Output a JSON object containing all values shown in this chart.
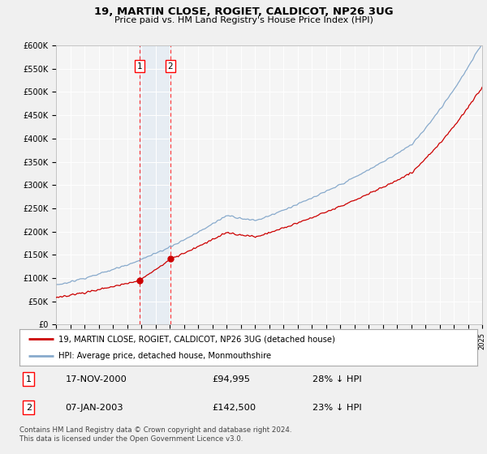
{
  "title": "19, MARTIN CLOSE, ROGIET, CALDICOT, NP26 3UG",
  "subtitle": "Price paid vs. HM Land Registry's House Price Index (HPI)",
  "ylabel_ticks": [
    "£0",
    "£50K",
    "£100K",
    "£150K",
    "£200K",
    "£250K",
    "£300K",
    "£350K",
    "£400K",
    "£450K",
    "£500K",
    "£550K",
    "£600K"
  ],
  "ytick_values": [
    0,
    50000,
    100000,
    150000,
    200000,
    250000,
    300000,
    350000,
    400000,
    450000,
    500000,
    550000,
    600000
  ],
  "x_start_year": 1995,
  "x_end_year": 2025,
  "sale1_date": "17-NOV-2000",
  "sale1_price": 94995,
  "sale1_label_price": "£94,995",
  "sale1_pct": "28% ↓ HPI",
  "sale2_date": "07-JAN-2003",
  "sale2_price": 142500,
  "sale2_label_price": "£142,500",
  "sale2_pct": "23% ↓ HPI",
  "line1_label": "19, MARTIN CLOSE, ROGIET, CALDICOT, NP26 3UG (detached house)",
  "line2_label": "HPI: Average price, detached house, Monmouthshire",
  "line1_color": "#cc0000",
  "line2_color": "#88aacc",
  "shade_color": "#ddeeff",
  "marker_color": "#cc0000",
  "footer": "Contains HM Land Registry data © Crown copyright and database right 2024.\nThis data is licensed under the Open Government Licence v3.0.",
  "fig_bg": "#f0f0f0",
  "plot_bg": "#f5f5f5"
}
